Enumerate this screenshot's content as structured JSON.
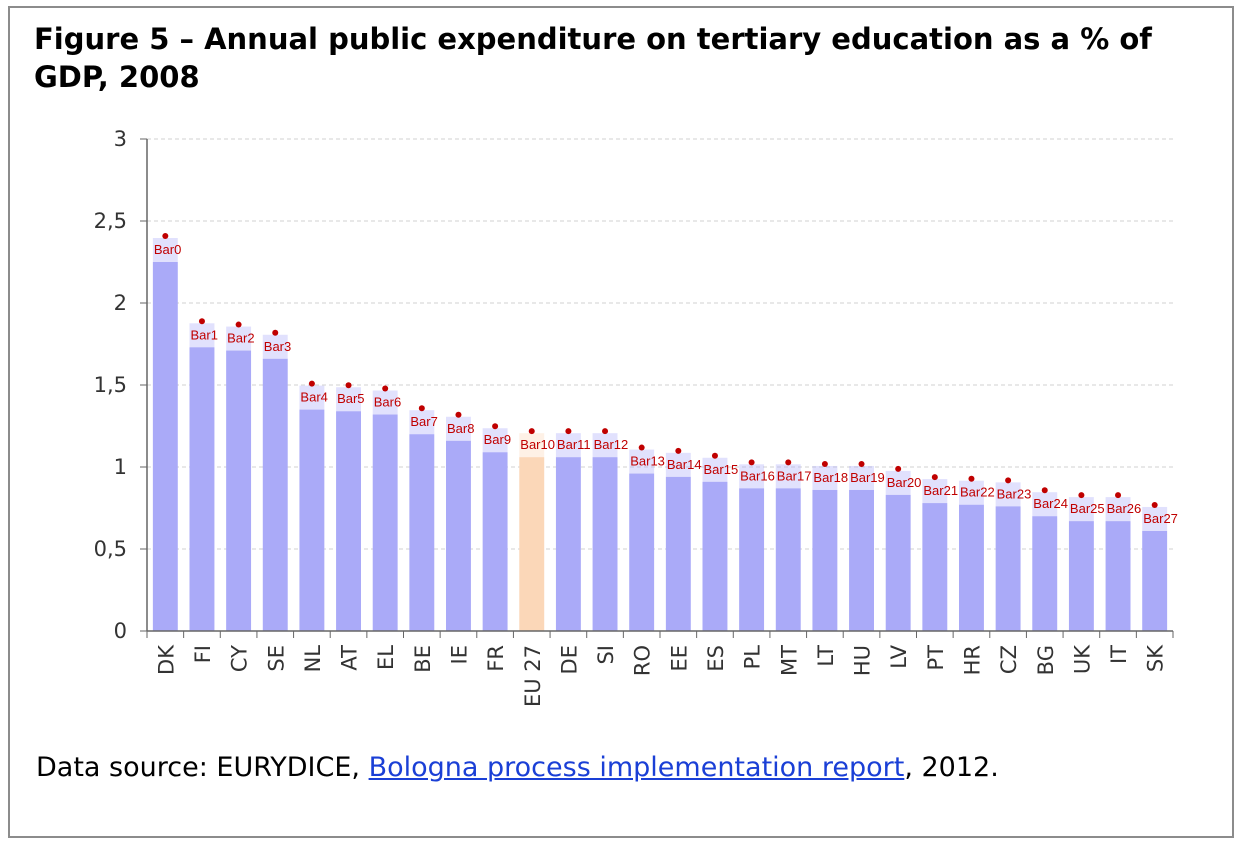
{
  "title": "Figure 5 – Annual public expenditure on tertiary education as a % of GDP, 2008",
  "source": {
    "prefix": "Data source: EURYDICE, ",
    "link_text": "Bologna process implementation report",
    "suffix": ", 2012."
  },
  "colors": {
    "bar": "#aaaaf8",
    "highlight": "#fbd7b8",
    "marker": "#c00000",
    "grid": "#d0d0d0",
    "axis": "#666666"
  },
  "chart_data": {
    "type": "bar",
    "title": "Figure 5 – Annual public expenditure on tertiary education as a % of GDP, 2008",
    "xlabel": "",
    "ylabel": "",
    "ylim": [
      0,
      3
    ],
    "yticks": [
      0,
      0.5,
      1,
      1.5,
      2,
      2.5,
      3
    ],
    "ytick_labels": [
      "0",
      "0,5",
      "1",
      "1,5",
      "2",
      "2,5",
      "3"
    ],
    "grid": true,
    "categories": [
      "DK",
      "FI",
      "CY",
      "SE",
      "NL",
      "AT",
      "EL",
      "BE",
      "IE",
      "FR",
      "EU 27",
      "DE",
      "SI",
      "RO",
      "EE",
      "ES",
      "PL",
      "MT",
      "LT",
      "HU",
      "LV",
      "PT",
      "HR",
      "CZ",
      "BG",
      "UK",
      "IT",
      "SK"
    ],
    "values": [
      2.25,
      1.73,
      1.71,
      1.66,
      1.35,
      1.34,
      1.32,
      1.2,
      1.16,
      1.09,
      1.06,
      1.06,
      1.06,
      0.96,
      0.94,
      0.91,
      0.87,
      0.87,
      0.86,
      0.86,
      0.83,
      0.78,
      0.77,
      0.76,
      0.7,
      0.67,
      0.67,
      0.61
    ],
    "highlight_category": "EU 27",
    "bar_tags": [
      "Bar0",
      "Bar1",
      "Bar2",
      "Bar3",
      "Bar4",
      "Bar5",
      "Bar6",
      "Bar7",
      "Bar8",
      "Bar9",
      "Bar10",
      "Bar11",
      "Bar12",
      "Bar13",
      "Bar14",
      "Bar15",
      "Bar16",
      "Bar17",
      "Bar18",
      "Bar19",
      "Bar20",
      "Bar21",
      "Bar22",
      "Bar23",
      "Bar24",
      "Bar25",
      "Bar26",
      "Bar27"
    ]
  }
}
